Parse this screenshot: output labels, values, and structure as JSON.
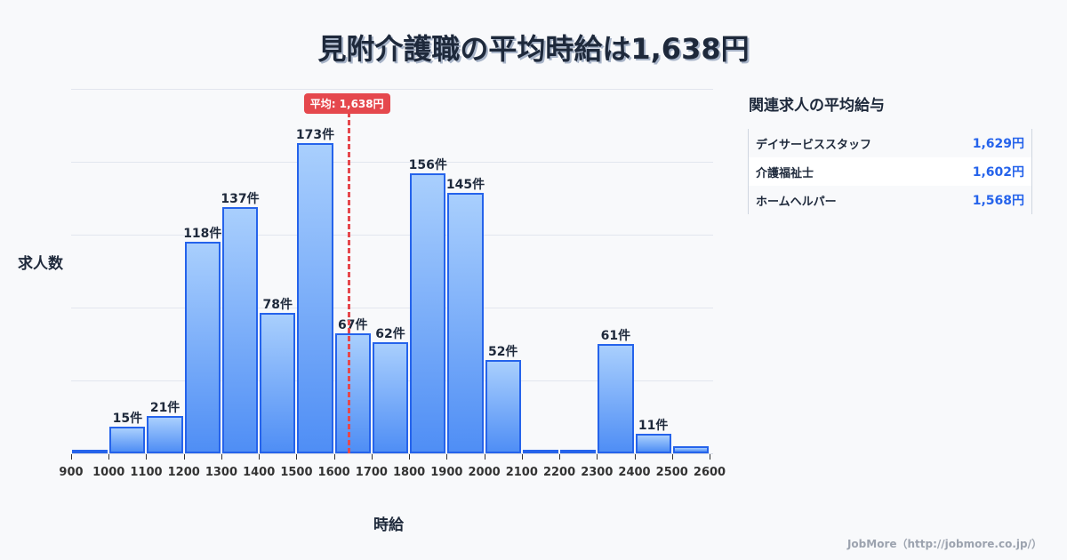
{
  "title": "見附介護職の平均時給は1,638円",
  "chart_data": {
    "type": "bar",
    "title": "見附介護職の平均時給は1,638円",
    "xlabel": "時給",
    "ylabel": "求人数",
    "categories": [
      "900",
      "1000",
      "1100",
      "1200",
      "1300",
      "1400",
      "1500",
      "1600",
      "1700",
      "1800",
      "1900",
      "2000",
      "2100",
      "2200",
      "2300",
      "2400",
      "2500"
    ],
    "x_ticks": [
      "900",
      "1000",
      "1100",
      "1200",
      "1300",
      "1400",
      "1500",
      "1600",
      "1700",
      "1800",
      "1900",
      "2000",
      "2100",
      "2200",
      "2300",
      "2400",
      "2500",
      "2600"
    ],
    "values": [
      1,
      15,
      21,
      118,
      137,
      78,
      173,
      67,
      62,
      156,
      145,
      52,
      1,
      2,
      61,
      11,
      4
    ],
    "labels": [
      "",
      "15件",
      "21件",
      "118件",
      "137件",
      "78件",
      "173件",
      "67件",
      "62件",
      "156件",
      "145件",
      "52件",
      "",
      "",
      "61件",
      "11件",
      ""
    ],
    "ylim": [
      0,
      203
    ],
    "grid": true,
    "average": {
      "value": 1638,
      "label": "平均: 1,638円",
      "color": "#e5484d"
    },
    "bar_color": "#2563eb"
  },
  "side_panel": {
    "title": "関連求人の平均給与",
    "rows": [
      {
        "name": "デイサービススタッフ",
        "value": "1,629円"
      },
      {
        "name": "介護福祉士",
        "value": "1,602円"
      },
      {
        "name": "ホームヘルパー",
        "value": "1,568円"
      }
    ]
  },
  "footer": "JobMore（http://jobmore.co.jp/）"
}
